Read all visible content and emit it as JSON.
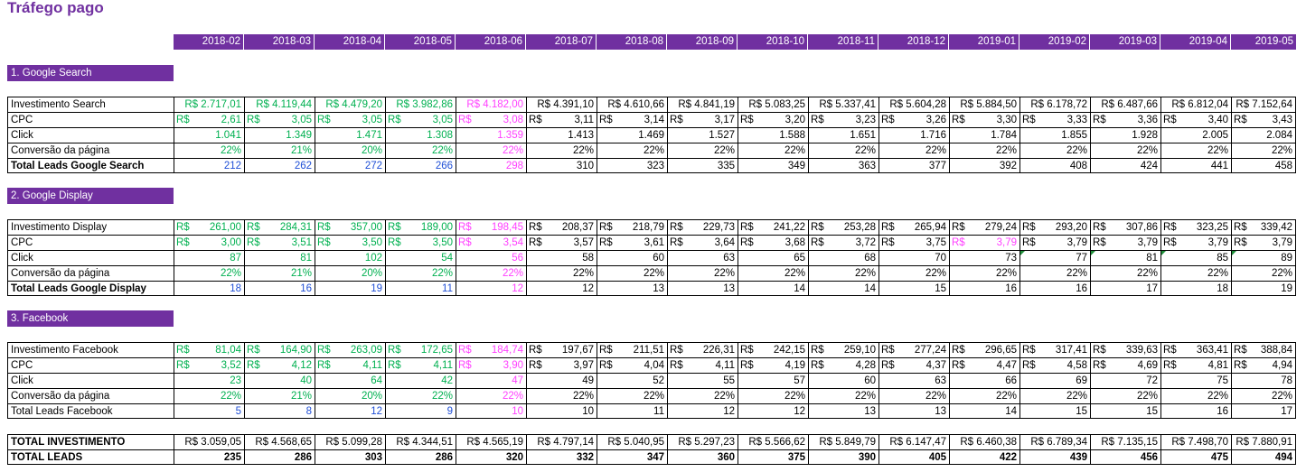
{
  "title": "Tráfego pago",
  "colors": {
    "purple": "#7030a0",
    "green": "#00b050",
    "pink": "#ff40ff",
    "blue": "#1f4fd6",
    "black": "#000000"
  },
  "months": [
    "2018-02",
    "2018-03",
    "2018-04",
    "2018-05",
    "2018-06",
    "2018-07",
    "2018-08",
    "2018-09",
    "2018-10",
    "2018-11",
    "2018-12",
    "2019-01",
    "2019-02",
    "2019-03",
    "2019-04",
    "2019-05"
  ],
  "sections": [
    {
      "title": "1. Google Search",
      "rows": [
        {
          "label": "Investimento Search",
          "style": "money",
          "values": [
            "R$ 2.717,01",
            "R$ 4.119,44",
            "R$ 4.479,20",
            "R$ 3.982,86",
            "R$ 4.182,00",
            "R$ 4.391,10",
            "R$ 4.610,66",
            "R$ 4.841,19",
            "R$ 5.083,25",
            "R$ 5.337,41",
            "R$ 5.604,28",
            "R$ 5.884,50",
            "R$ 6.178,72",
            "R$ 6.487,66",
            "R$ 6.812,04",
            "R$ 7.152,64"
          ]
        },
        {
          "label": "CPC",
          "style": "currency",
          "values": [
            "2,61",
            "3,05",
            "3,05",
            "3,05",
            "3,08",
            "3,11",
            "3,14",
            "3,17",
            "3,20",
            "3,23",
            "3,26",
            "3,30",
            "3,33",
            "3,36",
            "3,40",
            "3,43"
          ]
        },
        {
          "label": "Click",
          "style": "num",
          "values": [
            "1.041",
            "1.349",
            "1.471",
            "1.308",
            "1.359",
            "1.413",
            "1.469",
            "1.527",
            "1.588",
            "1.651",
            "1.716",
            "1.784",
            "1.855",
            "1.928",
            "2.005",
            "2.084"
          ]
        },
        {
          "label": "Conversão da página",
          "style": "num",
          "values": [
            "22%",
            "21%",
            "20%",
            "22%",
            "22%",
            "22%",
            "22%",
            "22%",
            "22%",
            "22%",
            "22%",
            "22%",
            "22%",
            "22%",
            "22%",
            "22%"
          ]
        },
        {
          "label": "Total Leads Google Search",
          "style": "leads",
          "bold_label": true,
          "values": [
            "212",
            "262",
            "272",
            "266",
            "298",
            "310",
            "323",
            "335",
            "349",
            "363",
            "377",
            "392",
            "408",
            "424",
            "441",
            "458"
          ]
        }
      ]
    },
    {
      "title": "2. Google Display",
      "rows": [
        {
          "label": "Investimento Display",
          "style": "currency",
          "values": [
            "261,00",
            "284,31",
            "357,00",
            "189,00",
            "198,45",
            "208,37",
            "218,79",
            "229,73",
            "241,22",
            "253,28",
            "265,94",
            "279,24",
            "293,20",
            "307,86",
            "323,25",
            "339,42"
          ]
        },
        {
          "label": "CPC",
          "style": "currency",
          "pink_extra": [
            11
          ],
          "values": [
            "3,00",
            "3,51",
            "3,50",
            "3,50",
            "3,54",
            "3,57",
            "3,61",
            "3,64",
            "3,68",
            "3,72",
            "3,75",
            "3,79",
            "3,79",
            "3,79",
            "3,79",
            "3,79"
          ]
        },
        {
          "label": "Click",
          "style": "num",
          "markers": [
            12,
            13,
            14,
            15
          ],
          "values": [
            "87",
            "81",
            "102",
            "54",
            "56",
            "58",
            "60",
            "63",
            "65",
            "68",
            "70",
            "73",
            "77",
            "81",
            "85",
            "89"
          ]
        },
        {
          "label": "Conversão da página",
          "style": "num",
          "values": [
            "22%",
            "21%",
            "20%",
            "22%",
            "22%",
            "22%",
            "22%",
            "22%",
            "22%",
            "22%",
            "22%",
            "22%",
            "22%",
            "22%",
            "22%",
            "22%"
          ]
        },
        {
          "label": "Total Leads Google Display",
          "style": "leads",
          "bold_label": true,
          "values": [
            "18",
            "16",
            "19",
            "11",
            "12",
            "12",
            "13",
            "13",
            "14",
            "14",
            "15",
            "16",
            "16",
            "17",
            "18",
            "19"
          ]
        }
      ]
    },
    {
      "title": "3. Facebook",
      "rows": [
        {
          "label": "Investimento Facebook",
          "style": "currency",
          "values": [
            "81,04",
            "164,90",
            "263,09",
            "172,65",
            "184,74",
            "197,67",
            "211,51",
            "226,31",
            "242,15",
            "259,10",
            "277,24",
            "296,65",
            "317,41",
            "339,63",
            "363,41",
            "388,84"
          ]
        },
        {
          "label": "CPC",
          "style": "currency",
          "values": [
            "3,52",
            "4,12",
            "4,11",
            "4,11",
            "3,90",
            "3,97",
            "4,04",
            "4,11",
            "4,19",
            "4,28",
            "4,37",
            "4,47",
            "4,58",
            "4,69",
            "4,81",
            "4,94"
          ]
        },
        {
          "label": "Click",
          "style": "num",
          "values": [
            "23",
            "40",
            "64",
            "42",
            "47",
            "49",
            "52",
            "55",
            "57",
            "60",
            "63",
            "66",
            "69",
            "72",
            "75",
            "78"
          ]
        },
        {
          "label": "Conversão da página",
          "style": "num",
          "values": [
            "22%",
            "21%",
            "20%",
            "22%",
            "22%",
            "22%",
            "22%",
            "22%",
            "22%",
            "22%",
            "22%",
            "22%",
            "22%",
            "22%",
            "22%",
            "22%"
          ]
        },
        {
          "label": "Total Leads Facebook",
          "style": "leads",
          "bold_label": false,
          "values": [
            "5",
            "8",
            "12",
            "9",
            "10",
            "10",
            "11",
            "12",
            "12",
            "13",
            "13",
            "14",
            "15",
            "15",
            "16",
            "17"
          ]
        }
      ]
    }
  ],
  "currency_symbol": "R$",
  "totals": [
    {
      "label": "TOTAL INVESTIMENTO",
      "values": [
        "R$ 3.059,05",
        "R$ 4.568,65",
        "R$ 5.099,28",
        "R$ 4.344,51",
        "R$ 4.565,19",
        "R$ 4.797,14",
        "R$ 5.040,95",
        "R$ 5.297,23",
        "R$ 5.566,62",
        "R$ 5.849,79",
        "R$ 6.147,47",
        "R$ 6.460,38",
        "R$ 6.789,34",
        "R$ 7.135,15",
        "R$ 7.498,70",
        "R$ 7.880,91"
      ]
    },
    {
      "label": "TOTAL LEADS",
      "values": [
        "235",
        "286",
        "303",
        "286",
        "320",
        "332",
        "347",
        "360",
        "375",
        "390",
        "405",
        "422",
        "439",
        "456",
        "475",
        "494"
      ]
    }
  ]
}
